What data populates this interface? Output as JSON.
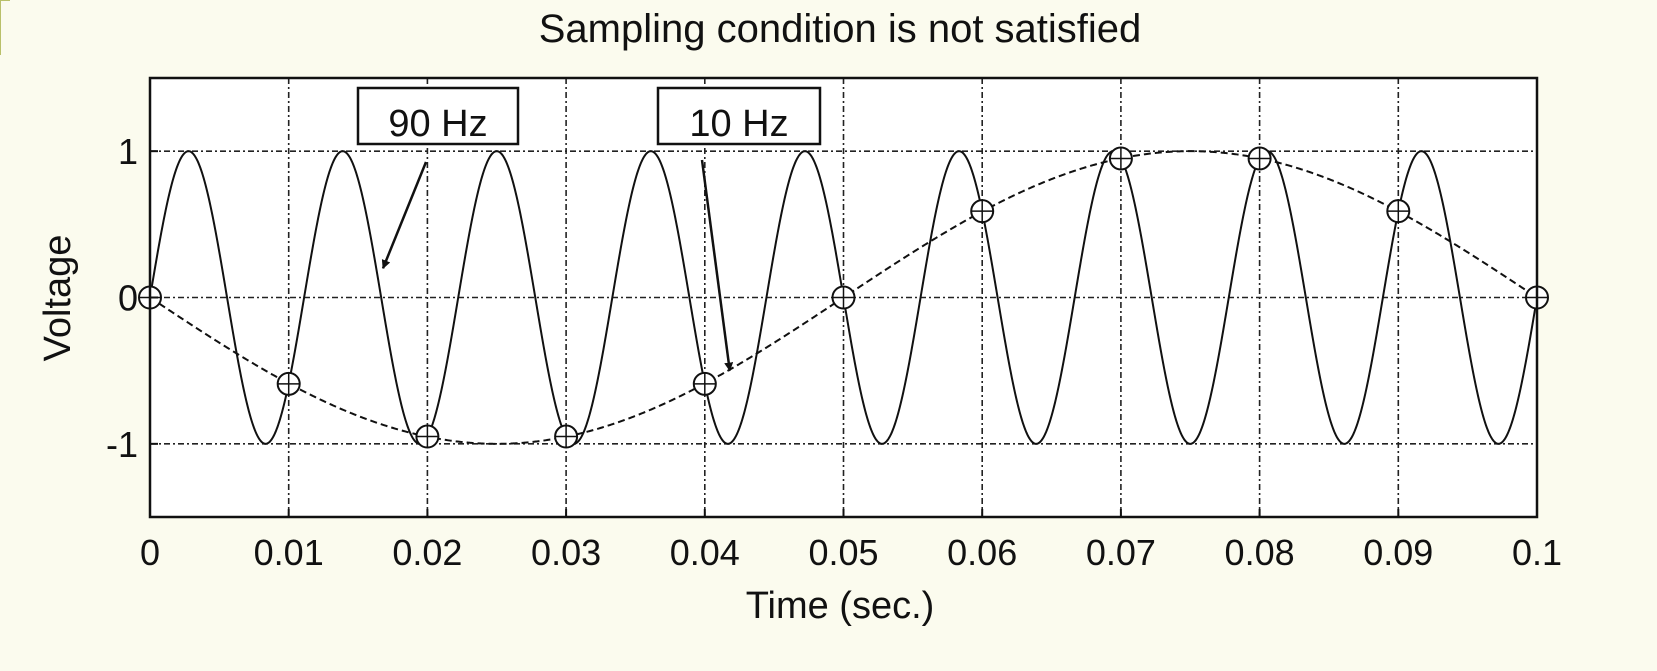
{
  "chart_data": {
    "type": "line",
    "title": "Sampling condition is not satisfied",
    "xlabel": "Time (sec.)",
    "ylabel": "Voltage",
    "xlim": [
      0,
      0.1
    ],
    "ylim": [
      -1.5,
      1.5
    ],
    "x_ticks": [
      "0",
      "0.01",
      "0.02",
      "0.03",
      "0.04",
      "0.05",
      "0.06",
      "0.07",
      "0.08",
      "0.09",
      "0.1"
    ],
    "y_ticks": [
      "1",
      "0",
      "-1"
    ],
    "grid": true,
    "series": [
      {
        "kind": "sine",
        "frequency_hz": 90,
        "amplitude": 1,
        "phase": "sin",
        "line_style": "solid",
        "color": "#111111"
      },
      {
        "kind": "sampled",
        "frequency_hz": 10,
        "amplitude": 1,
        "phase": "-sin",
        "line_style": "dashed",
        "color": "#111111",
        "samples_x": [
          0,
          0.01,
          0.02,
          0.03,
          0.04,
          0.05,
          0.06,
          0.07,
          0.08,
          0.09,
          0.1
        ],
        "samples_y": [
          0,
          -0.59,
          -0.95,
          -0.95,
          -0.59,
          0,
          0.59,
          0.95,
          0.95,
          0.59,
          0
        ],
        "marker": "circle-plus"
      }
    ],
    "annotations": [
      {
        "text": "90 Hz",
        "arrow_to_x": 0.0168,
        "arrow_to_y": 0.2
      },
      {
        "text": "10 Hz",
        "arrow_to_x": 0.0418,
        "arrow_to_y": -0.5
      }
    ]
  }
}
